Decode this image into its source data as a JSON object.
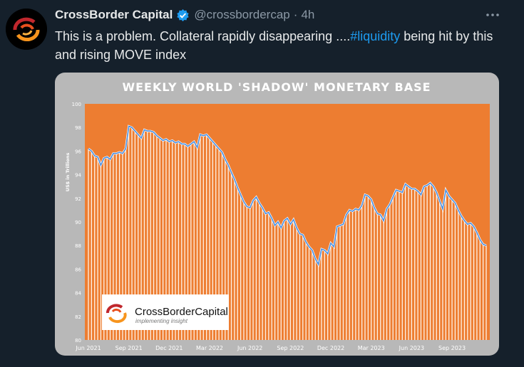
{
  "tweet": {
    "author_name": "CrossBorder Capital",
    "author_handle": "@crossbordercap",
    "separator": "·",
    "time": "4h",
    "text_before": "This is a problem. Collateral rapidly disappearing ....",
    "hashtag": "#liquidity",
    "text_after": " being hit by this and rising MOVE index"
  },
  "colors": {
    "background": "#15202b",
    "accent": "#1d9bf0",
    "verified": "#1d9bf0",
    "chart_bg": "#ed7d31",
    "chart_line": "#4a90e2",
    "frame": "#b8b8b8"
  },
  "icons": {
    "verified": "verified-badge-icon",
    "more": "more-options-icon",
    "avatar": "crossborder-logo-icon"
  },
  "logo": {
    "brand": "CrossBorderCapital",
    "tagline": "implementing insight"
  },
  "chart_data": {
    "type": "area",
    "title": "WEEKLY WORLD 'SHADOW' MONETARY BASE",
    "ylabel": "US$ in Trillions",
    "xlabel": "",
    "ylim": [
      80,
      100
    ],
    "yticks": [
      80,
      82,
      84,
      86,
      88,
      90,
      92,
      94,
      96,
      98,
      100
    ],
    "x_ticks": [
      {
        "label": "Jun 2021",
        "index": 0
      },
      {
        "label": "Sep 2021",
        "index": 13
      },
      {
        "label": "Dec 2021",
        "index": 26
      },
      {
        "label": "Mar 2022",
        "index": 39
      },
      {
        "label": "Jun 2022",
        "index": 52
      },
      {
        "label": "Sep 2022",
        "index": 65
      },
      {
        "label": "Dec 2022",
        "index": 78
      },
      {
        "label": "Mar 2023",
        "index": 91
      },
      {
        "label": "Jun 2023",
        "index": 104
      },
      {
        "label": "Sep 2023",
        "index": 117
      }
    ],
    "series": [
      {
        "name": "Shadow Monetary Base",
        "values": [
          96.2,
          96.0,
          95.6,
          95.5,
          94.8,
          95.4,
          95.5,
          95.3,
          95.8,
          95.8,
          95.9,
          95.8,
          96.2,
          98.1,
          98.0,
          97.7,
          97.4,
          97.1,
          97.8,
          97.7,
          97.7,
          97.6,
          97.3,
          97.1,
          96.9,
          97.0,
          96.8,
          96.9,
          96.7,
          96.8,
          96.6,
          96.6,
          96.4,
          96.6,
          96.8,
          96.3,
          97.4,
          97.3,
          97.4,
          97.1,
          96.8,
          96.5,
          96.2,
          95.9,
          95.3,
          94.8,
          94.2,
          93.6,
          92.9,
          92.3,
          91.7,
          91.3,
          91.2,
          91.8,
          92.1,
          91.6,
          91.2,
          90.7,
          90.8,
          90.3,
          89.7,
          90.0,
          89.5,
          90.1,
          90.3,
          89.8,
          90.2,
          89.5,
          89.0,
          88.9,
          88.3,
          87.9,
          87.6,
          86.9,
          86.4,
          87.7,
          87.6,
          87.3,
          88.2,
          87.9,
          89.6,
          89.7,
          89.8,
          90.6,
          91.0,
          90.9,
          91.1,
          91.0,
          91.4,
          92.3,
          92.2,
          91.9,
          91.2,
          90.7,
          90.6,
          90.1,
          91.1,
          91.5,
          92.1,
          92.7,
          92.6,
          92.5,
          93.2,
          93.0,
          92.8,
          92.8,
          92.6,
          92.3,
          93.0,
          93.1,
          93.3,
          93.0,
          92.5,
          91.8,
          91.1,
          92.7,
          92.2,
          91.9,
          91.6,
          91.0,
          90.5,
          90.1,
          89.8,
          89.9,
          89.6,
          89.1,
          88.5,
          88.1,
          88.0
        ]
      }
    ]
  }
}
